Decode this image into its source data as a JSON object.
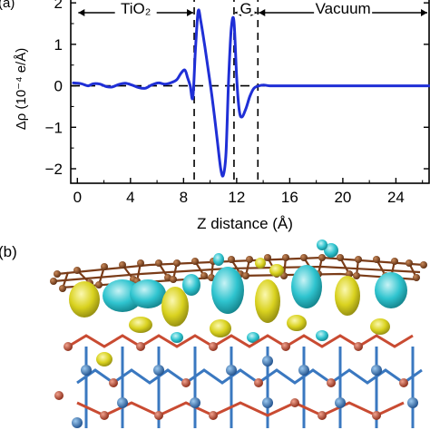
{
  "panel_a": {
    "label": "(a)",
    "regions": [
      {
        "label": "TiO₂",
        "from": 0,
        "to": 8.8
      },
      {
        "label": "G",
        "from": 11.8,
        "to": 13.6
      },
      {
        "label": "Vacuum",
        "from": 13.6,
        "to": 26.5
      }
    ],
    "boundaries": [
      8.8,
      11.8,
      13.6
    ]
  },
  "panel_b": {
    "label": "(b)"
  },
  "colors": {
    "curve": "#1f2fd6",
    "frame": "#000000",
    "iso_cyan": "#2fc4cf",
    "iso_yellow": "#d9d21f",
    "carbon": "#7a3c18",
    "titanium": "#2f6fb5",
    "oxygen": "#c94b32"
  },
  "chart_data": {
    "type": "line",
    "title": "",
    "xlabel": "Z distance (Å)",
    "ylabel": "Δρ (10⁻⁴ e/Å)",
    "xlim": [
      -0.5,
      26.5
    ],
    "ylim": [
      -2.35,
      2.2
    ],
    "xticks": [
      0,
      4,
      8,
      12,
      16,
      20,
      24
    ],
    "yticks": [
      -2,
      -1,
      0,
      1,
      2
    ],
    "grid": false,
    "series": [
      {
        "x": [
          -0.3,
          0.3,
          0.8,
          1.2,
          1.7,
          2.2,
          2.6,
          3.1,
          3.6,
          4.1,
          4.6,
          5.1,
          5.6,
          6.1,
          6.6,
          7.1,
          7.5,
          7.8,
          8.1,
          8.3,
          8.5,
          8.7,
          8.9,
          9.1,
          9.3,
          9.6,
          9.9,
          10.2,
          10.5,
          10.8,
          11.0,
          11.2,
          11.4,
          11.6,
          11.8,
          12.0,
          12.2,
          12.4,
          12.7,
          13.0,
          13.3,
          13.6,
          14.0,
          14.5,
          15.5,
          17.0,
          19.0,
          21.0,
          23.0,
          25.0,
          26.5
        ],
        "y": [
          0.07,
          0.05,
          0.0,
          0.05,
          0.04,
          -0.02,
          -0.03,
          0.03,
          0.06,
          0.02,
          -0.04,
          -0.06,
          0.02,
          0.07,
          0.04,
          0.08,
          0.15,
          0.3,
          0.38,
          0.2,
          0.0,
          -0.28,
          0.9,
          1.8,
          1.55,
          0.95,
          0.3,
          -0.4,
          -1.2,
          -2.0,
          -2.15,
          -1.6,
          0.2,
          1.4,
          1.55,
          0.2,
          -0.6,
          -0.75,
          -0.55,
          -0.25,
          -0.06,
          -0.01,
          0.02,
          0.0,
          0.0,
          0.0,
          0.0,
          0.0,
          0.0,
          0.0,
          0.0
        ]
      }
    ]
  }
}
